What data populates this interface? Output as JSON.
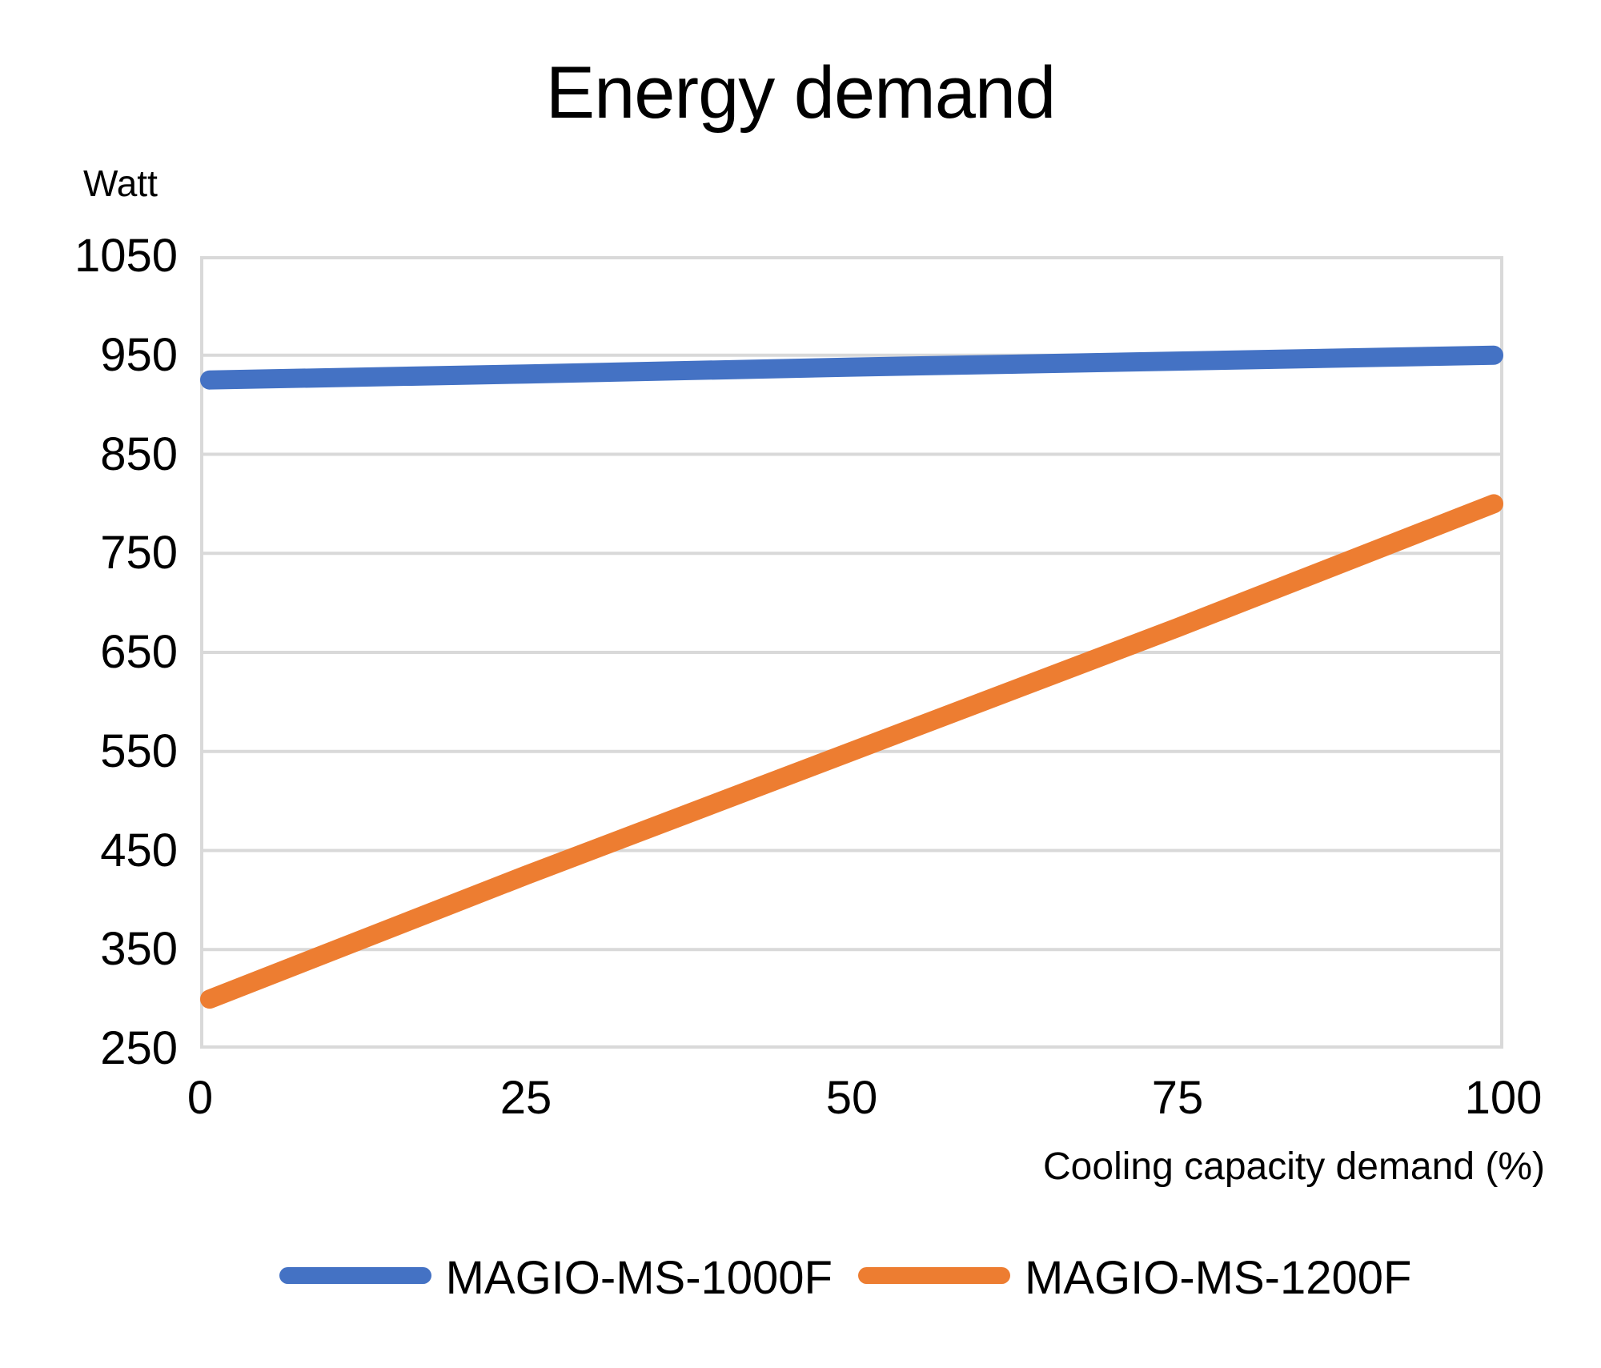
{
  "chart_data": {
    "type": "line",
    "title": "Energy demand",
    "ylabel": "Watt",
    "xlabel": "Cooling capacity demand (%)",
    "x": [
      0,
      25,
      50,
      75,
      100
    ],
    "series": [
      {
        "name": "MAGIO-MS-1000F",
        "color": "#4472C4",
        "values": [
          925,
          931,
          938,
          944,
          950
        ]
      },
      {
        "name": "MAGIO-MS-1200F",
        "color": "#ED7D31",
        "values": [
          300,
          425,
          550,
          675,
          800
        ]
      }
    ],
    "xlim": [
      0,
      100
    ],
    "ylim": [
      250,
      1050
    ],
    "yticks": [
      250,
      350,
      450,
      550,
      650,
      750,
      850,
      950,
      1050
    ],
    "xticks": [
      0,
      25,
      50,
      75,
      100
    ],
    "grid": "horizontal",
    "grid_color": "#D9D9D9",
    "line_width": 24,
    "legend_position": "bottom",
    "text_color": "#000000",
    "background": "#FFFFFF"
  }
}
